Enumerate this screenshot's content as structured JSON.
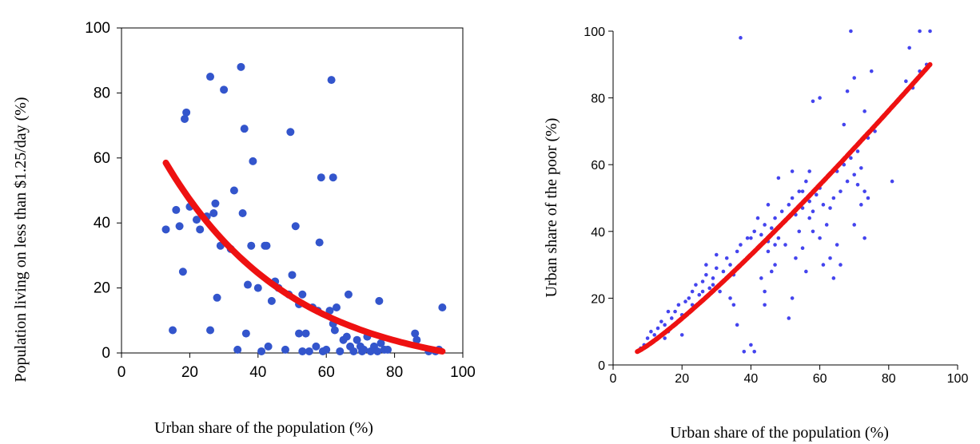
{
  "chart_data": [
    {
      "type": "scatter",
      "xlabel": "Urban share of the population (%)",
      "ylabel": "Population living on less than $1.25/day (%)",
      "xlim": [
        0,
        100
      ],
      "ylim": [
        0,
        100
      ],
      "xticks": [
        "0",
        "20",
        "40",
        "60",
        "80",
        "100"
      ],
      "yticks": [
        "0",
        "20",
        "40",
        "60",
        "80",
        "100"
      ],
      "point_color": "#3355cc",
      "fit_color": "#ee1111",
      "points": [
        [
          13,
          38
        ],
        [
          15,
          7
        ],
        [
          16,
          44
        ],
        [
          17,
          39
        ],
        [
          18,
          25
        ],
        [
          18.5,
          72
        ],
        [
          19,
          74
        ],
        [
          20,
          45
        ],
        [
          22,
          41
        ],
        [
          23,
          38
        ],
        [
          25,
          42
        ],
        [
          26,
          85
        ],
        [
          26,
          7
        ],
        [
          27,
          43
        ],
        [
          27.5,
          46
        ],
        [
          28,
          17
        ],
        [
          29,
          33
        ],
        [
          30,
          81
        ],
        [
          32,
          32
        ],
        [
          33,
          50
        ],
        [
          34,
          1
        ],
        [
          35,
          88
        ],
        [
          35.5,
          43
        ],
        [
          36,
          69
        ],
        [
          36.5,
          6
        ],
        [
          37,
          21
        ],
        [
          38,
          33
        ],
        [
          38.5,
          59
        ],
        [
          40,
          20
        ],
        [
          41,
          0.5
        ],
        [
          42,
          33
        ],
        [
          42.5,
          33
        ],
        [
          43,
          2
        ],
        [
          44,
          16
        ],
        [
          45,
          22
        ],
        [
          46,
          20
        ],
        [
          48,
          1
        ],
        [
          49,
          18
        ],
        [
          49.5,
          68
        ],
        [
          50,
          24
        ],
        [
          51,
          39
        ],
        [
          52,
          6
        ],
        [
          52,
          15
        ],
        [
          53,
          18
        ],
        [
          53,
          0.5
        ],
        [
          54,
          6
        ],
        [
          55,
          0.5
        ],
        [
          56,
          14
        ],
        [
          57,
          2
        ],
        [
          57.5,
          13
        ],
        [
          58,
          34
        ],
        [
          58.5,
          54
        ],
        [
          59,
          0.5
        ],
        [
          60,
          1
        ],
        [
          61,
          13
        ],
        [
          61.5,
          84
        ],
        [
          62,
          54
        ],
        [
          62,
          9
        ],
        [
          62.5,
          7
        ],
        [
          63,
          14
        ],
        [
          64,
          0.5
        ],
        [
          65,
          4
        ],
        [
          66,
          5
        ],
        [
          66.5,
          18
        ],
        [
          67,
          2
        ],
        [
          68,
          0.5
        ],
        [
          69,
          4
        ],
        [
          70,
          2
        ],
        [
          70.5,
          0.5
        ],
        [
          71,
          1
        ],
        [
          72,
          5
        ],
        [
          73,
          0.5
        ],
        [
          74,
          2
        ],
        [
          75,
          0.5
        ],
        [
          75.5,
          16
        ],
        [
          76,
          3
        ],
        [
          77,
          1
        ],
        [
          78,
          1
        ],
        [
          86,
          6
        ],
        [
          86.5,
          4
        ],
        [
          90,
          0.5
        ],
        [
          92,
          0.5
        ],
        [
          93,
          1
        ],
        [
          94,
          14
        ]
      ],
      "fit_curve": {
        "x_start": 13,
        "x_end": 94,
        "y_start": 58.5,
        "y_end": 0.5
      }
    },
    {
      "type": "scatter",
      "xlabel": "Urban share of the population (%)",
      "ylabel": "Urban share of the poor (%)",
      "xlim": [
        0,
        100
      ],
      "ylim": [
        0,
        100
      ],
      "xticks": [
        "0",
        "20",
        "40",
        "60",
        "80",
        "100"
      ],
      "yticks": [
        "0",
        "20",
        "40",
        "60",
        "80",
        "100"
      ],
      "point_color": "#4444ee",
      "fit_color": "#ee1111",
      "points": [
        [
          7,
          4
        ],
        [
          8,
          5
        ],
        [
          9,
          6
        ],
        [
          10,
          8
        ],
        [
          11,
          10
        ],
        [
          12,
          9
        ],
        [
          13,
          11
        ],
        [
          14,
          13
        ],
        [
          15,
          12
        ],
        [
          16,
          10
        ],
        [
          17,
          14
        ],
        [
          18,
          16
        ],
        [
          19,
          18
        ],
        [
          20,
          15
        ],
        [
          21,
          19
        ],
        [
          22,
          20
        ],
        [
          23,
          22
        ],
        [
          24,
          24
        ],
        [
          25,
          21
        ],
        [
          26,
          25
        ],
        [
          27,
          27
        ],
        [
          28,
          23
        ],
        [
          29,
          26
        ],
        [
          30,
          29
        ],
        [
          31,
          24
        ],
        [
          32,
          28
        ],
        [
          33,
          32
        ],
        [
          34,
          30
        ],
        [
          35,
          27
        ],
        [
          36,
          34
        ],
        [
          37,
          36
        ],
        [
          38,
          31
        ],
        [
          39,
          38
        ],
        [
          40,
          33
        ],
        [
          41,
          40
        ],
        [
          42,
          35
        ],
        [
          43,
          39
        ],
        [
          44,
          42
        ],
        [
          45,
          37
        ],
        [
          46,
          41
        ],
        [
          47,
          44
        ],
        [
          48,
          38
        ],
        [
          49,
          46
        ],
        [
          50,
          43
        ],
        [
          51,
          48
        ],
        [
          52,
          50
        ],
        [
          53,
          45
        ],
        [
          54,
          52
        ],
        [
          55,
          47
        ],
        [
          56,
          55
        ],
        [
          57,
          49
        ],
        [
          58,
          46
        ],
        [
          59,
          51
        ],
        [
          60,
          53
        ],
        [
          61,
          48
        ],
        [
          62,
          56
        ],
        [
          63,
          47
        ],
        [
          64,
          50
        ],
        [
          65,
          58
        ],
        [
          66,
          52
        ],
        [
          67,
          60
        ],
        [
          68,
          55
        ],
        [
          69,
          62
        ],
        [
          70,
          57
        ],
        [
          71,
          64
        ],
        [
          72,
          59
        ],
        [
          74,
          68
        ],
        [
          76,
          70
        ],
        [
          78,
          74
        ],
        [
          80,
          76
        ],
        [
          85,
          85
        ],
        [
          87,
          83
        ],
        [
          89,
          88
        ],
        [
          91,
          90
        ],
        [
          92,
          100
        ],
        [
          89,
          100
        ],
        [
          69,
          100
        ],
        [
          37,
          98
        ],
        [
          86,
          95
        ],
        [
          58,
          79
        ],
        [
          60,
          80
        ],
        [
          67,
          72
        ],
        [
          68,
          82
        ],
        [
          70,
          86
        ],
        [
          73,
          76
        ],
        [
          75,
          88
        ],
        [
          81,
          55
        ],
        [
          73,
          38
        ],
        [
          64,
          26
        ],
        [
          52,
          20
        ],
        [
          51,
          14
        ],
        [
          44,
          22
        ],
        [
          41,
          4
        ],
        [
          38,
          4
        ],
        [
          40,
          6
        ],
        [
          36,
          12
        ],
        [
          34,
          20
        ],
        [
          33,
          26
        ],
        [
          31,
          22
        ],
        [
          29,
          24
        ],
        [
          30,
          33
        ],
        [
          27,
          30
        ],
        [
          45,
          48
        ],
        [
          48,
          56
        ],
        [
          52,
          58
        ],
        [
          55,
          52
        ],
        [
          57,
          58
        ],
        [
          62,
          42
        ],
        [
          63,
          32
        ],
        [
          65,
          36
        ],
        [
          66,
          30
        ],
        [
          55,
          35
        ],
        [
          53,
          32
        ],
        [
          56,
          28
        ],
        [
          50,
          36
        ],
        [
          47,
          30
        ],
        [
          43,
          26
        ],
        [
          42,
          44
        ],
        [
          40,
          38
        ],
        [
          45,
          34
        ],
        [
          60,
          38
        ],
        [
          58,
          40
        ],
        [
          61,
          30
        ],
        [
          70,
          42
        ],
        [
          72,
          48
        ],
        [
          73,
          52
        ],
        [
          74,
          50
        ],
        [
          71,
          54
        ],
        [
          46,
          28
        ],
        [
          44,
          18
        ],
        [
          47,
          36
        ],
        [
          54,
          40
        ],
        [
          57,
          44
        ],
        [
          18,
          12
        ],
        [
          20,
          9
        ],
        [
          15,
          8
        ],
        [
          16,
          16
        ],
        [
          23,
          18
        ],
        [
          26,
          22
        ],
        [
          35,
          18
        ]
      ],
      "fit_curve": {
        "x_start": 7,
        "x_end": 92,
        "y_start": 4,
        "y_end": 90
      }
    }
  ]
}
